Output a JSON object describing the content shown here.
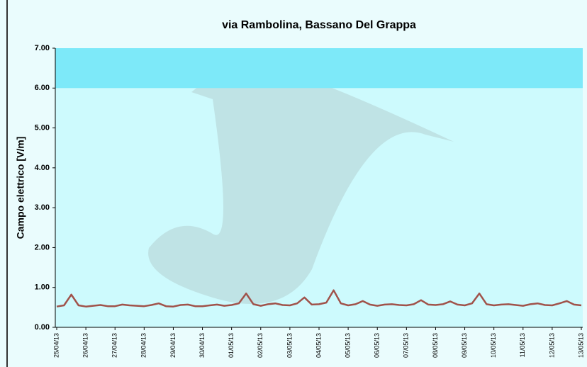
{
  "chart_data": {
    "type": "line",
    "title": "via Rambolina, Bassano Del Grappa",
    "y_label": "Campo elettrico [V/m]",
    "categories": [
      "25/04/13",
      null,
      null,
      null,
      "26/04/13",
      null,
      null,
      null,
      "27/04/13",
      null,
      null,
      null,
      "28/04/13",
      null,
      null,
      null,
      "29/04/13",
      null,
      null,
      null,
      "30/04/13",
      null,
      null,
      null,
      "01/05/13",
      null,
      null,
      null,
      "02/05/13",
      null,
      null,
      null,
      "03/05/13",
      null,
      null,
      null,
      "04/05/13",
      null,
      null,
      null,
      "05/05/13",
      null,
      null,
      null,
      "06/05/13",
      null,
      null,
      null,
      "07/05/13",
      null,
      null,
      null,
      "08/05/13",
      null,
      null,
      null,
      "09/05/13",
      null,
      null,
      null,
      "10/05/13",
      null,
      null,
      null,
      "11/05/13",
      null,
      null,
      null,
      "12/05/13",
      null,
      null,
      null,
      "13/05/13"
    ],
    "series": [
      {
        "color": "#a0524a",
        "values": [
          0.52,
          0.55,
          0.82,
          0.55,
          0.52,
          0.54,
          0.56,
          0.53,
          0.53,
          0.57,
          0.55,
          0.54,
          0.53,
          0.56,
          0.6,
          0.53,
          0.52,
          0.56,
          0.57,
          0.53,
          0.53,
          0.55,
          0.57,
          0.54,
          0.56,
          0.6,
          0.85,
          0.58,
          0.54,
          0.58,
          0.6,
          0.56,
          0.55,
          0.6,
          0.75,
          0.57,
          0.58,
          0.62,
          0.93,
          0.6,
          0.55,
          0.58,
          0.66,
          0.57,
          0.54,
          0.57,
          0.58,
          0.56,
          0.55,
          0.58,
          0.68,
          0.57,
          0.56,
          0.58,
          0.65,
          0.57,
          0.55,
          0.6,
          0.85,
          0.58,
          0.55,
          0.57,
          0.58,
          0.56,
          0.54,
          0.58,
          0.6,
          0.56,
          0.55,
          0.6,
          0.66,
          0.57,
          0.55
        ]
      }
    ],
    "band": [
      6,
      7
    ],
    "band_color": "#7de9f9",
    "ylim": [
      0,
      7
    ],
    "yticks": [
      {
        "value": 0,
        "label": "0.00"
      },
      {
        "value": 1,
        "label": "1.00"
      },
      {
        "value": 2,
        "label": "2.00"
      },
      {
        "value": 3,
        "label": "3.00"
      },
      {
        "value": 4,
        "label": "4.00"
      },
      {
        "value": 5,
        "label": "5.00"
      },
      {
        "value": 6,
        "label": "6.00"
      },
      {
        "value": 7,
        "label": "7.00"
      }
    ],
    "grid": false
  }
}
